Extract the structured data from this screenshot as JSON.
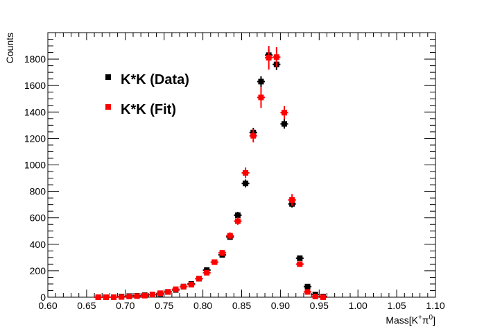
{
  "chart_data": {
    "type": "scatter",
    "title": "",
    "xlabel_main": "Mass[K",
    "xlabel_sup1": "+",
    "xlabel_mid": "π",
    "xlabel_sup2": "0",
    "xlabel_end": "]",
    "ylabel": "Counts",
    "xlim": [
      0.6,
      1.1
    ],
    "ylim": [
      0,
      2000
    ],
    "x_ticks": [
      "0.60",
      "0.65",
      "0.70",
      "0.75",
      "0.80",
      "0.85",
      "0.90",
      "0.95",
      "1.00",
      "1.05",
      "1.10"
    ],
    "y_ticks": [
      "0",
      "200",
      "400",
      "600",
      "800",
      "1000",
      "1200",
      "1400",
      "1600",
      "1800"
    ],
    "legend_position": "top-left",
    "colors": {
      "data": "#000000",
      "fit": "#ff0000"
    },
    "series": [
      {
        "name": "K*K (Data)",
        "x": [
          0.665,
          0.675,
          0.685,
          0.695,
          0.705,
          0.715,
          0.725,
          0.735,
          0.745,
          0.755,
          0.765,
          0.775,
          0.785,
          0.795,
          0.805,
          0.815,
          0.825,
          0.835,
          0.845,
          0.855,
          0.865,
          0.875,
          0.885,
          0.895,
          0.905,
          0.915,
          0.925,
          0.935,
          0.945,
          0.955
        ],
        "y": [
          0,
          0,
          0,
          5,
          8,
          10,
          15,
          20,
          25,
          40,
          55,
          80,
          100,
          140,
          205,
          265,
          320,
          455,
          620,
          860,
          1245,
          1630,
          1830,
          1760,
          1310,
          705,
          295,
          80,
          20,
          5
        ],
        "err": [
          0,
          0,
          0,
          2,
          3,
          3,
          4,
          5,
          5,
          7,
          8,
          9,
          10,
          12,
          15,
          16,
          18,
          21,
          25,
          30,
          35,
          40,
          43,
          42,
          36,
          27,
          17,
          9,
          5,
          2
        ]
      },
      {
        "name": "K*K (Fit)",
        "x": [
          0.665,
          0.675,
          0.685,
          0.695,
          0.705,
          0.715,
          0.725,
          0.735,
          0.745,
          0.755,
          0.765,
          0.775,
          0.785,
          0.795,
          0.805,
          0.815,
          0.825,
          0.835,
          0.845,
          0.855,
          0.865,
          0.875,
          0.885,
          0.895,
          0.905,
          0.915,
          0.925,
          0.935,
          0.945,
          0.955
        ],
        "y": [
          0,
          0,
          0,
          2,
          5,
          8,
          12,
          20,
          30,
          40,
          60,
          80,
          95,
          140,
          185,
          265,
          335,
          465,
          575,
          940,
          1220,
          1510,
          1810,
          1815,
          1395,
          735,
          250,
          40,
          5,
          0
        ],
        "err": [
          0,
          0,
          0,
          1,
          2,
          3,
          4,
          5,
          6,
          7,
          8,
          10,
          12,
          15,
          16,
          20,
          22,
          25,
          28,
          40,
          50,
          80,
          90,
          75,
          50,
          45,
          20,
          8,
          2,
          0
        ]
      }
    ]
  }
}
